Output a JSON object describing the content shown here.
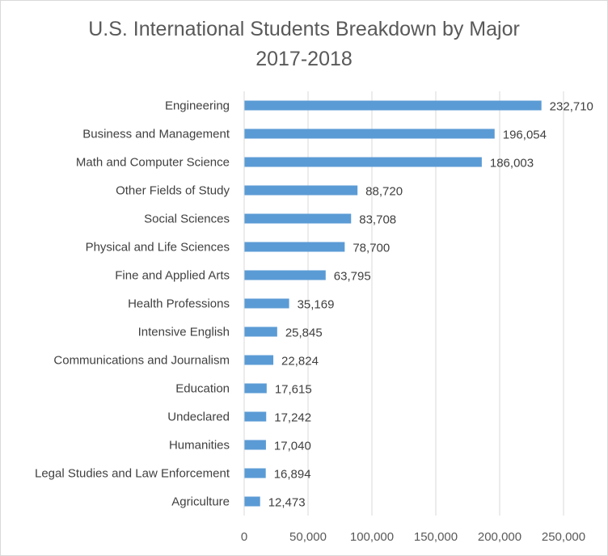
{
  "chart_data": {
    "type": "bar",
    "orientation": "horizontal",
    "title": "U.S. International Students Breakdown by Major",
    "subtitle": "2017-2018",
    "categories": [
      "Engineering",
      "Business and Management",
      "Math and Computer Science",
      "Other Fields of Study",
      "Social Sciences",
      "Physical and Life Sciences",
      "Fine and Applied Arts",
      "Health Professions",
      "Intensive English",
      "Communications and Journalism",
      "Education",
      "Undeclared",
      "Humanities",
      "Legal Studies and Law Enforcement",
      "Agriculture"
    ],
    "values": [
      232710,
      196054,
      186003,
      88720,
      83708,
      78700,
      63795,
      35169,
      25845,
      22824,
      17615,
      17242,
      17040,
      16894,
      12473
    ],
    "value_labels": [
      "232,710",
      "196,054",
      "186,003",
      "88,720",
      "83,708",
      "78,700",
      "63,795",
      "35,169",
      "25,845",
      "22,824",
      "17,615",
      "17,242",
      "17,040",
      "16,894",
      "12,473"
    ],
    "xlim": [
      0,
      250000
    ],
    "x_ticks": [
      0,
      50000,
      100000,
      150000,
      200000,
      250000
    ],
    "x_tick_labels": [
      "0",
      "50,000",
      "100,000",
      "150,000",
      "200,000",
      "250,000"
    ],
    "grid": "vertical",
    "legend": "none",
    "bar_color": "#5b9bd5",
    "grid_color": "#d9d9d9",
    "text_color": "#404040"
  }
}
